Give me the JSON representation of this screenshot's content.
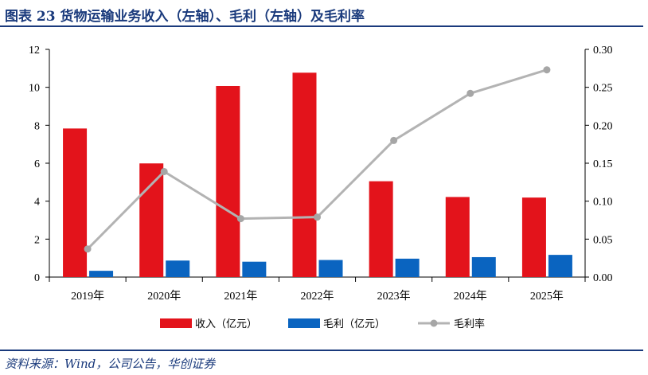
{
  "title": "图表 23   货物运输业务收入（左轴）、毛利（左轴）及毛利率",
  "source": "资料来源：Wind，公司公告，华创证券",
  "chart_data": {
    "type": "bar",
    "categories": [
      "2019年",
      "2020年",
      "2021年",
      "2022年",
      "2023年",
      "2024年",
      "2025年"
    ],
    "series": [
      {
        "name": "收入（亿元）",
        "type": "bar",
        "axis": "left",
        "color": "#e3131b",
        "values": [
          7.83,
          5.99,
          10.07,
          10.77,
          5.05,
          4.22,
          4.19
        ]
      },
      {
        "name": "毛利（亿元）",
        "type": "bar",
        "axis": "left",
        "color": "#0a64c0",
        "values": [
          0.33,
          0.87,
          0.81,
          0.9,
          0.97,
          1.05,
          1.17
        ]
      },
      {
        "name": "毛利率",
        "type": "line",
        "axis": "right",
        "color": "#b3b3b3",
        "values": [
          0.037,
          0.139,
          0.077,
          0.079,
          0.18,
          0.242,
          0.273
        ]
      }
    ],
    "left_axis": {
      "ylim": [
        0,
        12
      ],
      "ticks": [
        "0",
        "2",
        "4",
        "6",
        "8",
        "10",
        "12"
      ]
    },
    "right_axis": {
      "ylim": [
        0,
        0.3
      ],
      "ticks": [
        "0.00",
        "0.05",
        "0.10",
        "0.15",
        "0.20",
        "0.25",
        "0.30"
      ]
    },
    "legend_position": "bottom",
    "grid": false
  }
}
